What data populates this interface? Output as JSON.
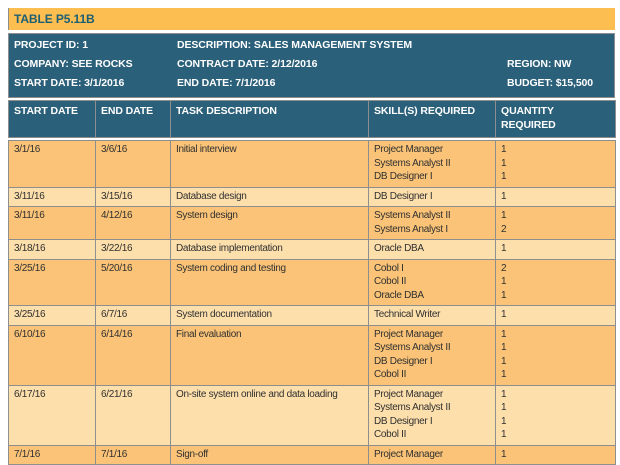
{
  "title": "TABLE P5.11B",
  "colors": {
    "title_bar_bg": "#FCBE50",
    "title_text": "#1D5E74",
    "header_teal": "#2B607A",
    "row_dark": "#FAC377",
    "row_light": "#FDDFAC",
    "border_gray": "#8E8E8E",
    "body_text": "#303030"
  },
  "project_info": {
    "rows": [
      [
        "PROJECT ID: 1",
        "DESCRIPTION: SALES MANAGEMENT SYSTEM",
        ""
      ],
      [
        "COMPANY: SEE ROCKS",
        "CONTRACT DATE: 2/12/2016",
        "REGION: NW"
      ],
      [
        "START DATE: 3/1/2016",
        "END DATE: 7/1/2016",
        "BUDGET: $15,500"
      ]
    ]
  },
  "columns": [
    "START DATE",
    "END DATE",
    "TASK DESCRIPTION",
    "SKILL(S) REQUIRED",
    "QUANTITY REQUIRED"
  ],
  "tasks": [
    {
      "start_date": "3/1/16",
      "end_date": "3/6/16",
      "task": "Initial interview",
      "skills": [
        "Project Manager",
        "Systems Analyst II",
        "DB Designer I"
      ],
      "quantities": [
        "1",
        "1",
        "1"
      ],
      "shade": "dark"
    },
    {
      "start_date": "3/11/16",
      "end_date": "3/15/16",
      "task": "Database design",
      "skills": [
        "DB Designer I"
      ],
      "quantities": [
        "1"
      ],
      "shade": "light"
    },
    {
      "start_date": "3/11/16",
      "end_date": "4/12/16",
      "task": "System design",
      "skills": [
        "Systems Analyst II",
        "Systems Analyst I"
      ],
      "quantities": [
        "1",
        "2"
      ],
      "shade": "dark"
    },
    {
      "start_date": "3/18/16",
      "end_date": "3/22/16",
      "task": "Database implementation",
      "skills": [
        "Oracle DBA"
      ],
      "quantities": [
        "1"
      ],
      "shade": "light"
    },
    {
      "start_date": "3/25/16",
      "end_date": "5/20/16",
      "task": "System coding and testing",
      "skills": [
        "Cobol I",
        "Cobol II",
        "Oracle DBA"
      ],
      "quantities": [
        "2",
        "1",
        "1"
      ],
      "shade": "dark"
    },
    {
      "start_date": "3/25/16",
      "end_date": "6/7/16",
      "task": "System documentation",
      "skills": [
        "Technical Writer"
      ],
      "quantities": [
        "1"
      ],
      "shade": "light"
    },
    {
      "start_date": "6/10/16",
      "end_date": "6/14/16",
      "task": "Final evaluation",
      "skills": [
        "Project Manager",
        "Systems Analyst II",
        "DB Designer I",
        "Cobol II"
      ],
      "quantities": [
        "1",
        "1",
        "1",
        "1"
      ],
      "shade": "dark"
    },
    {
      "start_date": "6/17/16",
      "end_date": "6/21/16",
      "task": "On-site system online and data loading",
      "skills": [
        "Project Manager",
        "Systems Analyst II",
        "DB Designer I",
        "Cobol II"
      ],
      "quantities": [
        "1",
        "1",
        "1",
        "1"
      ],
      "shade": "light"
    },
    {
      "start_date": "7/1/16",
      "end_date": "7/1/16",
      "task": "Sign-off",
      "skills": [
        "Project Manager"
      ],
      "quantities": [
        "1"
      ],
      "shade": "dark"
    }
  ]
}
